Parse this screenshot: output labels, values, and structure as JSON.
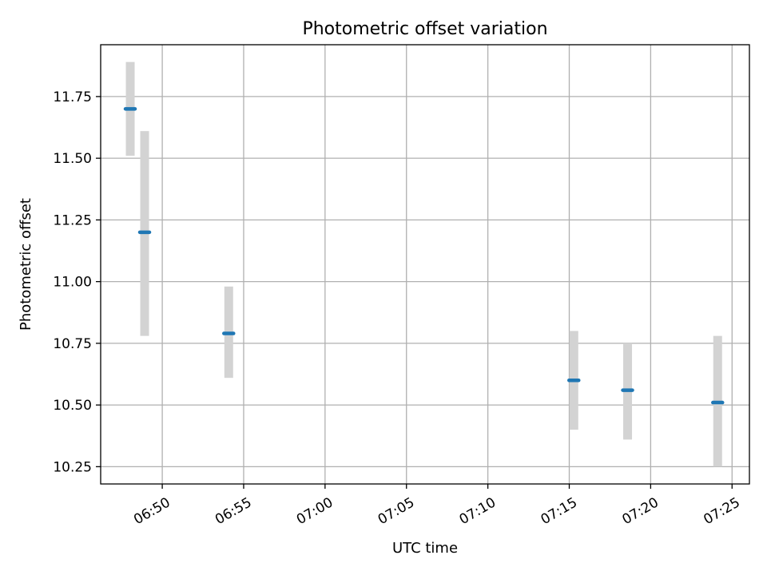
{
  "chart_data": {
    "type": "scatter",
    "title": "Photometric offset variation",
    "xlabel": "UTC time",
    "ylabel": "Photometric offset",
    "x_ticks": [
      "06:50",
      "06:55",
      "07:00",
      "07:05",
      "07:10",
      "07:15",
      "07:20",
      "07:25"
    ],
    "y_ticks": [
      "10.25",
      "10.50",
      "10.75",
      "11.00",
      "11.25",
      "11.50",
      "11.75"
    ],
    "xlim": [
      "06:46:13",
      "07:26:04"
    ],
    "ylim": [
      10.18,
      11.96
    ],
    "grid": true,
    "colors": {
      "point": "#1f77b4",
      "errorbar": "#d3d3d3",
      "grid": "#b0b0b0"
    },
    "series": [
      {
        "points": [
          {
            "time": "06:48:02",
            "y": 11.7,
            "yerr_low": 11.51,
            "yerr_high": 11.89
          },
          {
            "time": "06:48:55",
            "y": 11.2,
            "yerr_low": 10.78,
            "yerr_high": 11.61
          },
          {
            "time": "06:54:05",
            "y": 10.79,
            "yerr_low": 10.61,
            "yerr_high": 10.98
          },
          {
            "time": "07:15:17",
            "y": 10.6,
            "yerr_low": 10.4,
            "yerr_high": 10.8
          },
          {
            "time": "07:18:35",
            "y": 10.56,
            "yerr_low": 10.36,
            "yerr_high": 10.75
          },
          {
            "time": "07:24:07",
            "y": 10.51,
            "yerr_low": 10.25,
            "yerr_high": 10.78
          }
        ]
      }
    ]
  }
}
